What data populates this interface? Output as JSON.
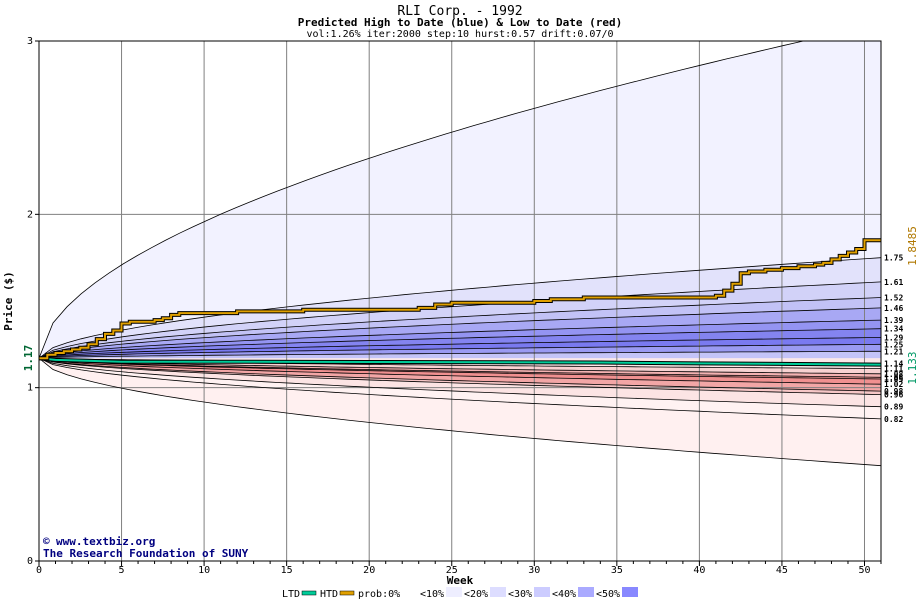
{
  "chart_data": {
    "type": "area",
    "title": "RLI Corp. - 1992",
    "subtitle": "Predicted High to Date (blue) &  Low to Date (red)",
    "params": "vol:1.26% iter:2000 step:10 hurst:0.57 drift:0.07/0",
    "xlabel": "Week",
    "ylabel": "Price ($)",
    "xlim": [
      0,
      51
    ],
    "ylim": [
      0,
      3
    ],
    "x_ticks": [
      0,
      5,
      10,
      15,
      20,
      25,
      30,
      35,
      40,
      45,
      50
    ],
    "y_ticks": [
      0,
      1,
      2,
      3
    ],
    "grid": true,
    "start_price": 1.17,
    "start_price_label": "1.17",
    "high_to_date_label": "1.8485",
    "low_to_date_label": "1.133",
    "high_bands_end": [
      1.75,
      1.61,
      1.52,
      1.46,
      1.39,
      1.34,
      1.29,
      1.25,
      1.21,
      1.14
    ],
    "low_bands_end": [
      1.11,
      1.08,
      1.06,
      1.05,
      1.02,
      0.98,
      0.96,
      0.89,
      0.82
    ],
    "high_band_labels": [
      "1.75",
      "1.61",
      "1.52",
      "1.46",
      "1.39",
      "1.34",
      "1.29",
      "1.25",
      "1.21",
      "1.14"
    ],
    "low_band_labels": [
      "1.11",
      "1.08",
      "1.06",
      "1.05",
      "1.02",
      "0.98",
      "0.96",
      "0.89",
      "0.82"
    ],
    "envelope_high_end": 3.1,
    "envelope_low_end": 0.55,
    "series": [
      {
        "name": "HTD",
        "x": [
          0,
          0.5,
          1,
          1.5,
          2,
          2.5,
          3,
          3.5,
          4,
          4.5,
          5,
          5.5,
          6,
          6.5,
          7,
          7.5,
          8,
          8.5,
          9,
          10,
          11,
          12,
          14,
          16,
          18,
          20,
          22,
          23,
          24,
          25,
          26,
          28,
          30,
          31,
          33,
          35,
          37,
          39,
          41,
          41.5,
          42,
          42.5,
          43,
          44,
          45,
          46,
          47,
          47.5,
          48,
          48.5,
          49,
          49.5,
          50,
          51
        ],
        "y": [
          1.17,
          1.19,
          1.2,
          1.21,
          1.22,
          1.23,
          1.25,
          1.28,
          1.31,
          1.33,
          1.37,
          1.38,
          1.38,
          1.38,
          1.39,
          1.4,
          1.42,
          1.43,
          1.43,
          1.43,
          1.43,
          1.44,
          1.44,
          1.45,
          1.45,
          1.45,
          1.45,
          1.46,
          1.48,
          1.49,
          1.49,
          1.49,
          1.5,
          1.51,
          1.52,
          1.52,
          1.52,
          1.52,
          1.53,
          1.56,
          1.6,
          1.66,
          1.67,
          1.68,
          1.69,
          1.7,
          1.71,
          1.72,
          1.74,
          1.76,
          1.78,
          1.8,
          1.85,
          1.85
        ]
      },
      {
        "name": "LTD",
        "x": [
          0,
          1,
          5,
          10,
          20,
          34,
          40,
          45,
          51
        ],
        "y": [
          1.17,
          1.16,
          1.15,
          1.15,
          1.148,
          1.145,
          1.14,
          1.137,
          1.133
        ]
      }
    ],
    "legend": {
      "position": "bottom",
      "items": [
        "LTD",
        "HTD",
        "prob:0%",
        "<10%",
        "<20%",
        "<30%",
        "<40%",
        "<50%"
      ],
      "colors": [
        "#00cc99",
        "#e0a000",
        "#ffffff",
        "#eeeeff",
        "#ddddff",
        "#ccccff",
        "#aaaaff",
        "#8888ff"
      ]
    },
    "credit_line1": "www.textbiz.org",
    "credit_line2": "The Research Foundation of SUNY",
    "colors": {
      "high_band": [
        "#f2f2ff",
        "#e2e2fb",
        "#d2d2f8",
        "#c2c2f6",
        "#a8a8f4",
        "#9494f2",
        "#8484f0",
        "#7a7af0",
        "#9a9af2",
        "#c4c4f8"
      ],
      "low_band": [
        "#fbe8e8",
        "#f8d2d2",
        "#f4b2b2",
        "#f29a9a",
        "#f09090",
        "#f2a6a6",
        "#f6c6c6",
        "#fce4e4",
        "#fff2f2"
      ],
      "htd": "#e0a000",
      "ltd": "#00cc99",
      "label_high": "#b07800",
      "label_low": "#009966",
      "start_label": "#006633",
      "credit": "#000080",
      "axis": "#000000",
      "grid": "#808080"
    }
  }
}
